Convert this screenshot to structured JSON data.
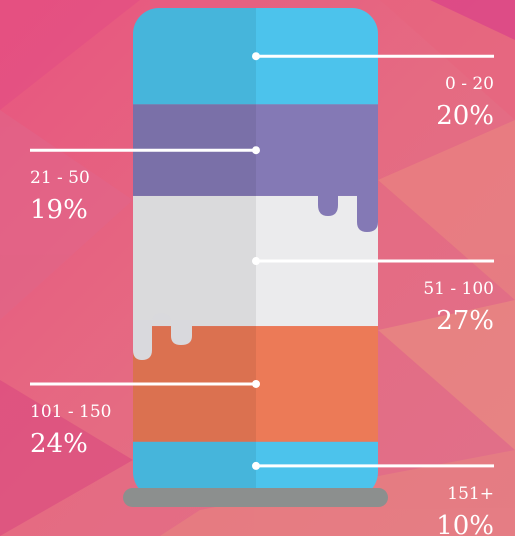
{
  "chart_data": {
    "type": "stacked-column",
    "categories": [
      "0 - 20",
      "21 - 50",
      "51 - 100",
      "101 - 150",
      "151+"
    ],
    "values": [
      20,
      19,
      27,
      24,
      10
    ],
    "value_labels": [
      "20%",
      "19%",
      "27%",
      "24%",
      "10%"
    ],
    "colors": [
      "#4cc3ec",
      "#8479b5",
      "#ebebed",
      "#ec7a57",
      "#4cc3ec"
    ]
  }
}
